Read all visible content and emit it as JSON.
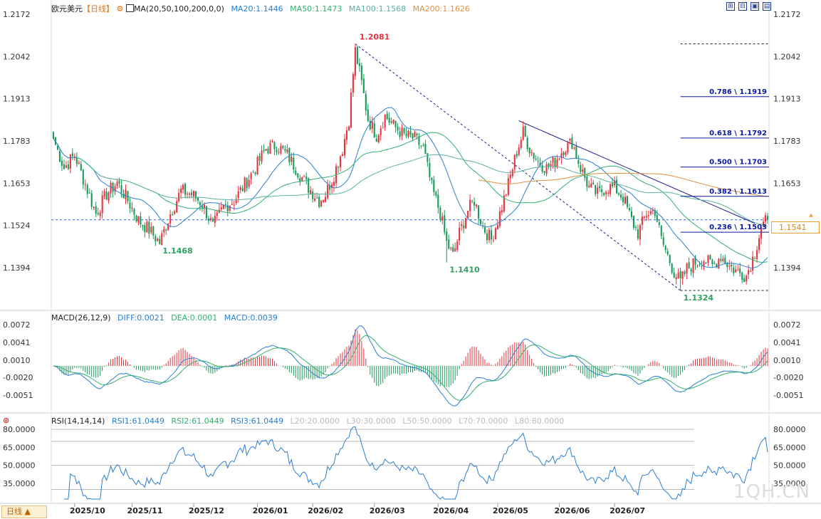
{
  "header": {
    "title": "欧元美元",
    "period_tag": "【日线】",
    "ma_label": "MA(20,50,100,200,0,0)",
    "ma20": "MA20:1.1446",
    "ma50": "MA50:1.1473",
    "ma100": "MA100:1.1568",
    "ma200": "MA200:1.1626",
    "toolbar_buttons": [
      "⊞",
      "⊟",
      "▣",
      "▤"
    ]
  },
  "macd_header": {
    "label": "MACD(26,12,9)",
    "diff": "DIFF:0.0021",
    "dea": "DEA:0.0001",
    "macd": "MACD:0.0039"
  },
  "rsi_header": {
    "label": "RSI(14,14,14)",
    "rsi1": "RSI1:61.0449",
    "rsi2": "RSI2:61.0449",
    "rsi3": "RSI3:61.0449",
    "l20": "L20:20.0000",
    "l30": "L30:30.0000",
    "l50": "L50:50.0000",
    "l70": "L70:70.0000",
    "l80": "L80:80.0000"
  },
  "period_button": "日线 ▲",
  "watermark": "1QH.CN",
  "current_price": "1.1541",
  "colors": {
    "up": "#e8333c",
    "down": "#1a9a5a",
    "ma20": "#2a7fd0",
    "ma50": "#30b070",
    "ma100": "#5cb0a0",
    "ma200": "#e09040",
    "fib": "#0a1aa0",
    "trend": "#1a1a90",
    "diff": "#2a7fd0",
    "dea": "#30b070",
    "rsi": "#2a7fd0",
    "grid": "#e6e6e6"
  },
  "chart_data": [
    {
      "type": "candlestick",
      "title": "欧元美元 日线",
      "ylim": [
        1.1324,
        1.2172
      ],
      "y_ticks": [
        "1.2172",
        "1.2042",
        "1.1913",
        "1.1783",
        "1.1653",
        "1.1524",
        "1.1394"
      ],
      "x_ticks": [
        "2025/10",
        "2025/11",
        "2025/12",
        "2026/01",
        "2026/02",
        "2026/03",
        "2026/04",
        "2026/05",
        "2026/06",
        "2026/07"
      ],
      "annotations": {
        "high": "1.2081",
        "low1": "1.1468",
        "low2": "1.1410",
        "low3": "1.1324"
      },
      "fib_levels": [
        {
          "label": "0.786 \\ 1.1919",
          "value": 1.1919
        },
        {
          "label": "0.618 \\ 1.1792",
          "value": 1.1792
        },
        {
          "label": "0.500 \\ 1.1703",
          "value": 1.1703
        },
        {
          "label": "0.382 \\ 1.1613",
          "value": 1.1613
        },
        {
          "label": "0.236 \\ 1.1503",
          "value": 1.1503
        }
      ],
      "last_close": 1.1541,
      "anchor_points": {
        "close": [
          [
            0,
            1.179
          ],
          [
            5,
            1.17
          ],
          [
            10,
            1.174
          ],
          [
            15,
            1.165
          ],
          [
            20,
            1.156
          ],
          [
            25,
            1.162
          ],
          [
            30,
            1.1655
          ],
          [
            35,
            1.16
          ],
          [
            40,
            1.154
          ],
          [
            45,
            1.151
          ],
          [
            50,
            1.147
          ],
          [
            55,
            1.156
          ],
          [
            60,
            1.163
          ],
          [
            65,
            1.162
          ],
          [
            70,
            1.159
          ],
          [
            75,
            1.152
          ],
          [
            80,
            1.158
          ],
          [
            85,
            1.16
          ],
          [
            90,
            1.165
          ],
          [
            95,
            1.17
          ],
          [
            100,
            1.176
          ],
          [
            105,
            1.177
          ],
          [
            110,
            1.174
          ],
          [
            115,
            1.169
          ],
          [
            120,
            1.164
          ],
          [
            125,
            1.16
          ],
          [
            128,
            1.162
          ],
          [
            132,
            1.168
          ],
          [
            136,
            1.176
          ],
          [
            139,
            1.185
          ],
          [
            142,
            1.206
          ],
          [
            145,
            1.196
          ],
          [
            148,
            1.185
          ],
          [
            152,
            1.18
          ],
          [
            156,
            1.186
          ],
          [
            160,
            1.183
          ],
          [
            165,
            1.18
          ],
          [
            170,
            1.179
          ],
          [
            174,
            1.176
          ],
          [
            178,
            1.164
          ],
          [
            182,
            1.156
          ],
          [
            185,
            1.147
          ],
          [
            188,
            1.143
          ],
          [
            191,
            1.15
          ],
          [
            195,
            1.157
          ],
          [
            198,
            1.16
          ],
          [
            202,
            1.152
          ],
          [
            206,
            1.148
          ],
          [
            210,
            1.156
          ],
          [
            214,
            1.165
          ],
          [
            218,
            1.175
          ],
          [
            221,
            1.181
          ],
          [
            224,
            1.176
          ],
          [
            228,
            1.172
          ],
          [
            232,
            1.17
          ],
          [
            236,
            1.172
          ],
          [
            240,
            1.176
          ],
          [
            244,
            1.178
          ],
          [
            248,
            1.17
          ],
          [
            252,
            1.164
          ],
          [
            256,
            1.162
          ],
          [
            260,
            1.164
          ],
          [
            264,
            1.164
          ],
          [
            268,
            1.161
          ],
          [
            272,
            1.154
          ],
          [
            275,
            1.15
          ],
          [
            279,
            1.156
          ],
          [
            283,
            1.157
          ],
          [
            286,
            1.148
          ],
          [
            289,
            1.143
          ],
          [
            292,
            1.138
          ],
          [
            295,
            1.135
          ],
          [
            298,
            1.139
          ],
          [
            302,
            1.141
          ],
          [
            306,
            1.142
          ],
          [
            310,
            1.14
          ],
          [
            314,
            1.143
          ],
          [
            318,
            1.14
          ],
          [
            322,
            1.138
          ],
          [
            326,
            1.137
          ],
          [
            330,
            1.144
          ],
          [
            333,
            1.152
          ],
          [
            336,
            1.1541
          ]
        ]
      }
    },
    {
      "type": "bar+line",
      "title": "MACD(26,12,9)",
      "ylim": [
        -0.007,
        0.008
      ],
      "y_ticks": [
        "0.0072",
        "0.0041",
        "0.0010",
        "-0.0020",
        "-0.0051"
      ],
      "series": [
        {
          "name": "DIFF",
          "last": 0.0021
        },
        {
          "name": "DEA",
          "last": 0.0001
        },
        {
          "name": "MACD",
          "last": 0.0039
        }
      ]
    },
    {
      "type": "line",
      "title": "RSI(14,14,14)",
      "ylim": [
        20,
        85
      ],
      "y_ticks": [
        "80.0000",
        "65.0000",
        "50.0000",
        "35.0000"
      ],
      "levels": [
        30,
        50,
        70,
        80
      ],
      "series": [
        {
          "name": "RSI1",
          "last": 61.0449
        },
        {
          "name": "RSI2",
          "last": 61.0449
        },
        {
          "name": "RSI3",
          "last": 61.0449
        }
      ]
    }
  ]
}
